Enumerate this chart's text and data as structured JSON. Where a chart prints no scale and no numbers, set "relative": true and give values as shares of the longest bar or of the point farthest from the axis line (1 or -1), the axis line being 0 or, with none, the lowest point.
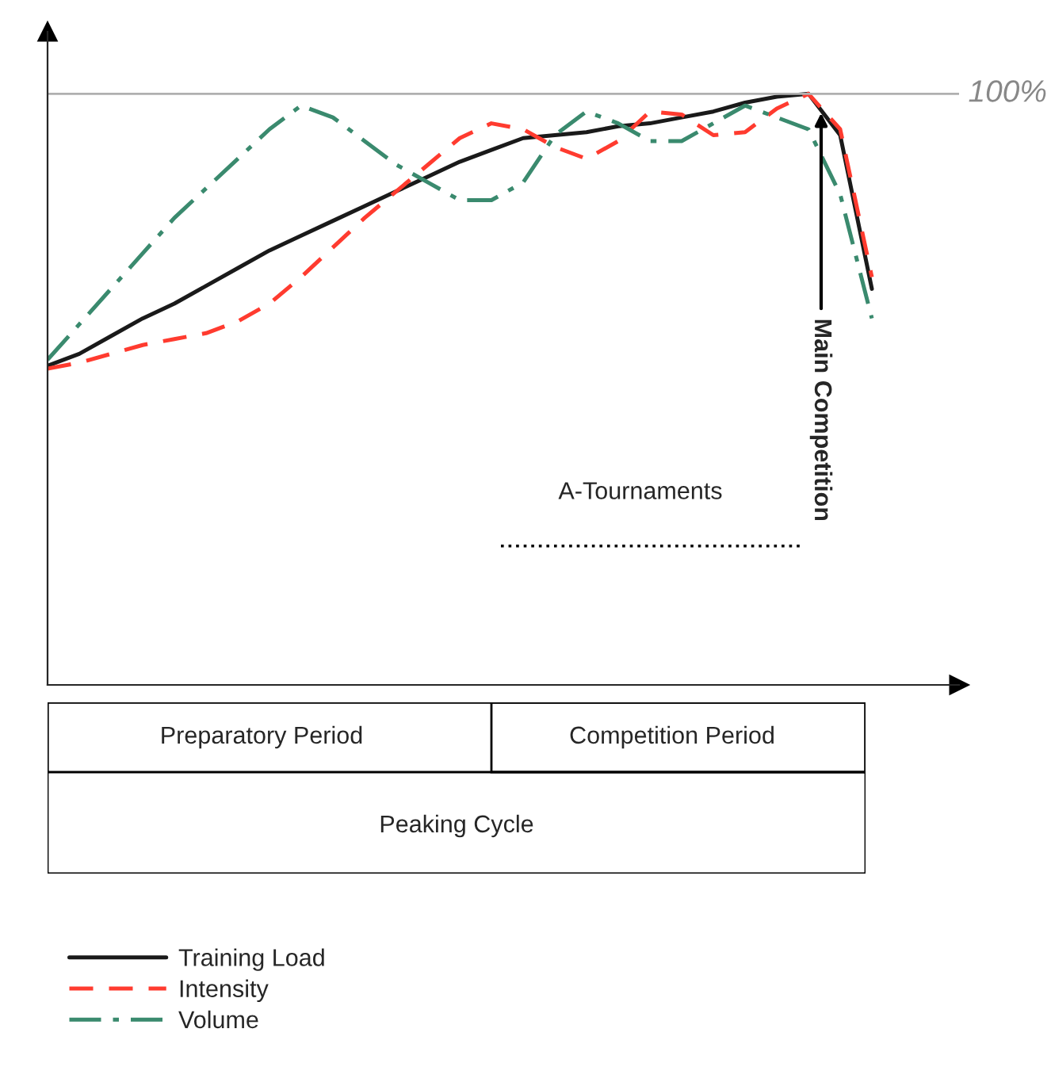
{
  "chart_data": {
    "type": "line",
    "relative": true,
    "categories": [
      null,
      null,
      null,
      null,
      null,
      null,
      null,
      null,
      null,
      null,
      null,
      null,
      null,
      null,
      null,
      null,
      null,
      null,
      null,
      null,
      null,
      null,
      null,
      null,
      null,
      null,
      null
    ],
    "series": [
      {
        "name": "Training Load",
        "color": "#1a1a1a",
        "line_style": "solid",
        "values": [
          0.54,
          0.56,
          0.59,
          0.62,
          0.645,
          0.675,
          0.705,
          0.735,
          0.76,
          0.785,
          0.81,
          0.835,
          0.86,
          0.885,
          0.905,
          0.925,
          0.93,
          0.935,
          0.945,
          0.95,
          0.96,
          0.97,
          0.985,
          0.995,
          1.0,
          0.93,
          0.67
        ]
      },
      {
        "name": "Intensity",
        "color": "#ff3b2f",
        "line_style": "dashed",
        "values": [
          0.535,
          0.545,
          0.56,
          0.575,
          0.585,
          0.595,
          0.615,
          0.645,
          0.69,
          0.74,
          0.79,
          0.835,
          0.88,
          0.925,
          0.95,
          0.94,
          0.91,
          0.89,
          0.92,
          0.97,
          0.965,
          0.93,
          0.935,
          0.975,
          1.0,
          0.94,
          0.69
        ]
      },
      {
        "name": "Volume",
        "color": "#3a8a6e",
        "line_style": "dashdot",
        "values": [
          0.55,
          0.61,
          0.67,
          0.73,
          0.79,
          0.84,
          0.89,
          0.94,
          0.98,
          0.96,
          0.92,
          0.88,
          0.85,
          0.82,
          0.82,
          0.85,
          0.93,
          0.97,
          0.95,
          0.92,
          0.92,
          0.95,
          0.98,
          0.96,
          0.94,
          0.83,
          0.62
        ]
      }
    ],
    "ref_lines": [
      {
        "axis": "y",
        "value": 1,
        "label": "100%",
        "color": "#b0b0b0"
      }
    ],
    "annotations": [
      "A-Tournaments",
      "Main Competition",
      "Preparatory Period",
      "Competition Period",
      "Peaking Cycle"
    ],
    "legend": "bottom"
  }
}
